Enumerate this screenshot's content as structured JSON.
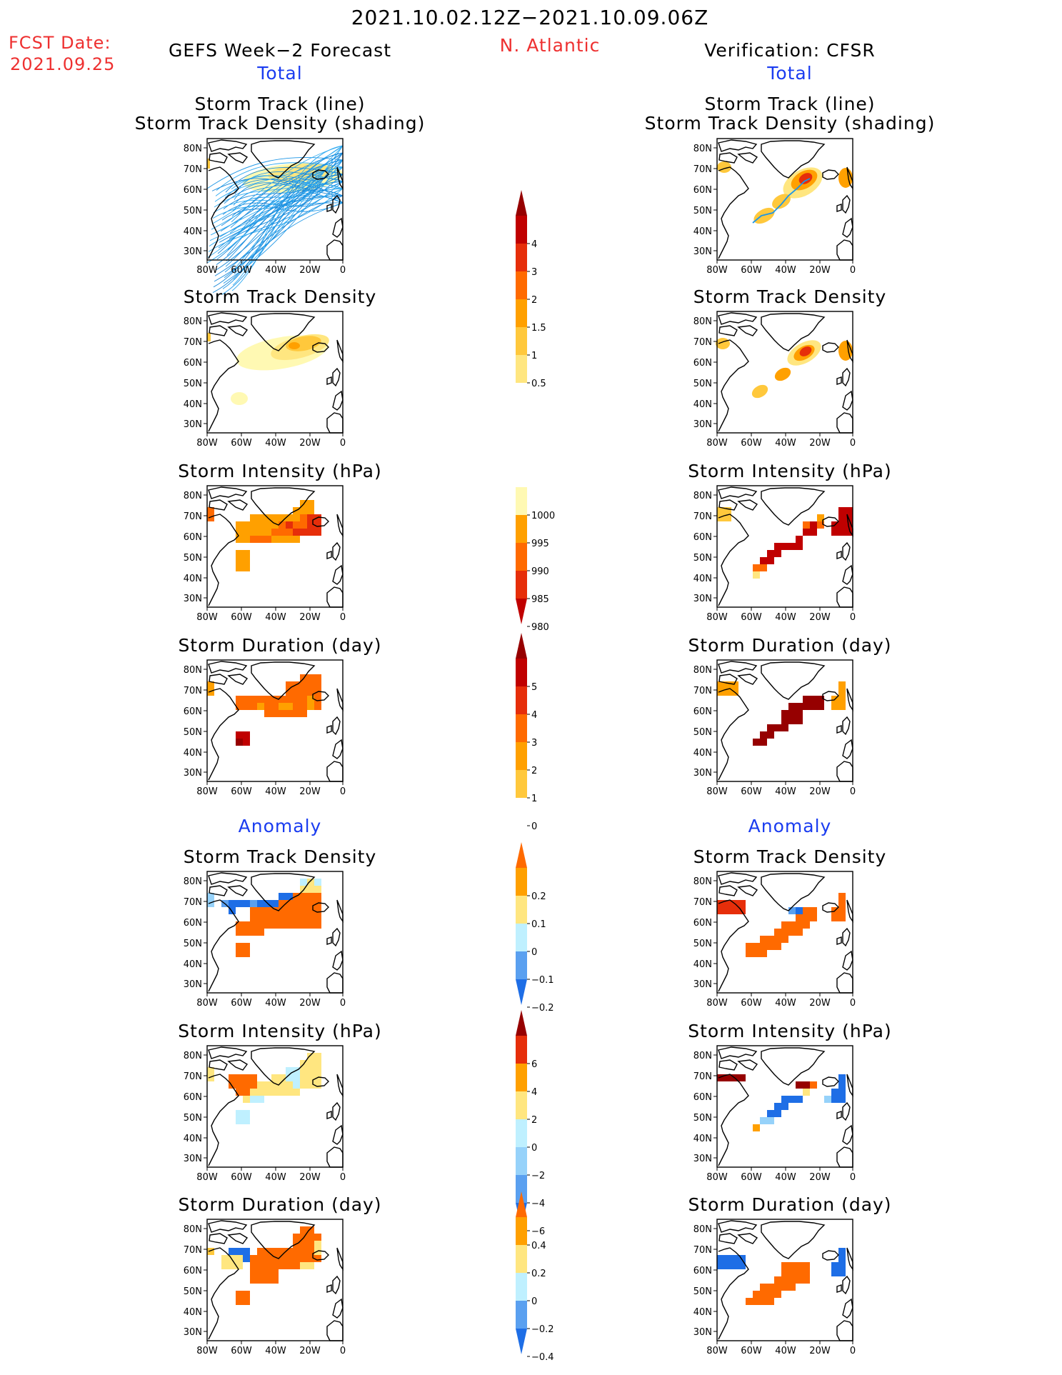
{
  "header": {
    "date_range": "2021.10.02.12Z−2021.10.09.06Z",
    "fcst_label": "FCST Date:",
    "fcst_date": "2021.09.25",
    "left_title": "GEFS Week−2 Forecast",
    "region": "N. Atlantic",
    "right_title": "Verification: CFSR"
  },
  "sections": {
    "total": "Total",
    "anomaly": "Anomaly"
  },
  "panel_titles": {
    "track_line": "Storm Track (line)",
    "track_density_shading": "Storm Track Density (shading)",
    "track_density": "Storm Track Density",
    "intensity": "Storm Intensity (hPa)",
    "duration": "Storm Duration (day)"
  },
  "axes": {
    "lat_labels": [
      "80N",
      "70N",
      "60N",
      "50N",
      "40N",
      "30N"
    ],
    "lon_labels": [
      "80W",
      "60W",
      "40W",
      "20W",
      "0"
    ]
  },
  "colorbars": {
    "density_total": [
      "4",
      "3",
      "2",
      "1.5",
      "1",
      "0.5"
    ],
    "intensity_total": [
      "1000",
      "995",
      "990",
      "985",
      "980"
    ],
    "duration_total": [
      "5",
      "4",
      "3",
      "2",
      "1",
      "0"
    ],
    "density_anom": [
      "0.2",
      "0.1",
      "0",
      "−0.1",
      "−0.2"
    ],
    "intensity_anom": [
      "6",
      "4",
      "2",
      "0",
      "−2",
      "−4",
      "−6"
    ],
    "duration_anom": [
      "0.4",
      "0.2",
      "0",
      "−0.2",
      "−0.4"
    ]
  },
  "colors": {
    "yellow1": "#fff9b3",
    "yellow2": "#ffe680",
    "yellow3": "#ffc83c",
    "orange1": "#ffa000",
    "orange2": "#ff6a00",
    "red1": "#e62e0a",
    "red2": "#c00000",
    "darkred": "#960000",
    "lightblue1": "#bff0ff",
    "lightblue2": "#96d2fa",
    "blue1": "#5aa0f0",
    "blue2": "#1e6ee6",
    "track_line": "#1e96e6"
  }
}
